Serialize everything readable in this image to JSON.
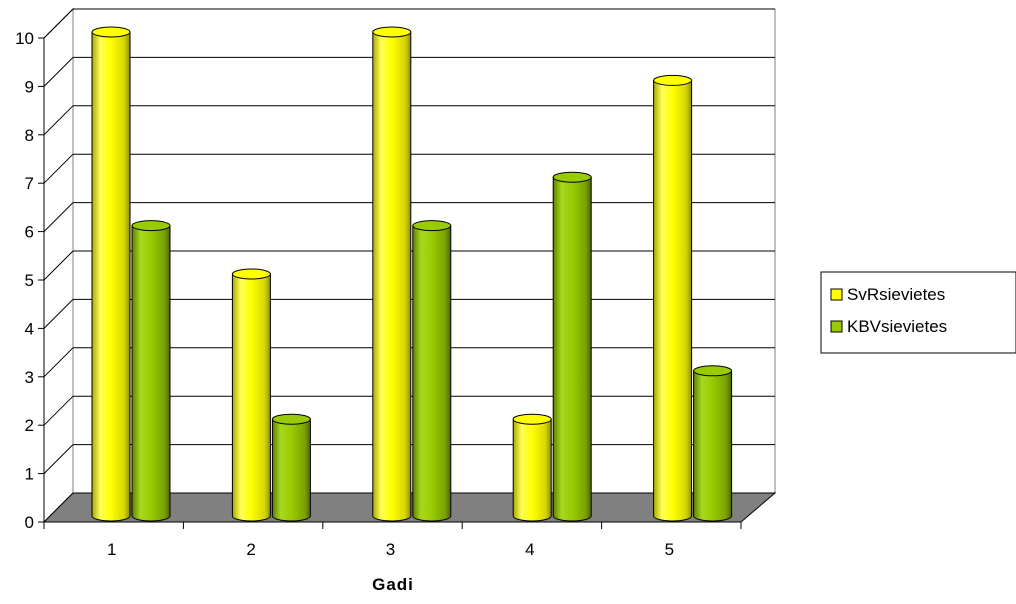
{
  "chart_data": {
    "type": "bar",
    "title": "",
    "xlabel": "Gadi",
    "ylabel": "",
    "categories": [
      "1",
      "2",
      "3",
      "4",
      "5"
    ],
    "series": [
      {
        "name": "SvRsievietes",
        "values": [
          10,
          5,
          10,
          2,
          9
        ]
      },
      {
        "name": "KBVsievietes",
        "values": [
          6,
          2,
          6,
          7,
          3
        ]
      }
    ],
    "ylim": [
      0,
      10
    ],
    "yticks": [
      "0",
      "1",
      "2",
      "3",
      "4",
      "5",
      "6",
      "7",
      "8",
      "9",
      "10"
    ],
    "grid": true,
    "legend_position": "right",
    "style": "3d-cylinder",
    "colors": {
      "SvRsievietes": "#ffff00",
      "KBVsievietes": "#99cc00",
      "floor": "#808080",
      "grid": "#000000"
    }
  }
}
